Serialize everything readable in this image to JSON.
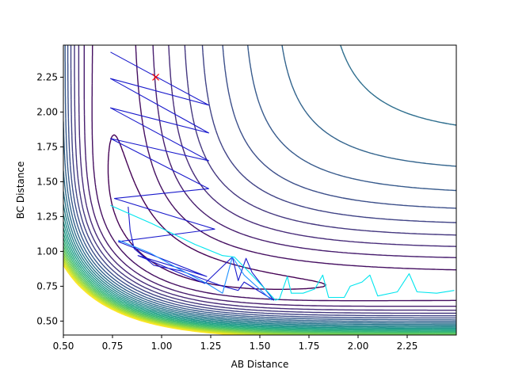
{
  "chart_data": {
    "type": "contour",
    "title": "",
    "xlabel": "AB Distance",
    "ylabel": "BC Distance",
    "xlim": [
      0.5,
      2.5
    ],
    "ylim": [
      0.4,
      2.48
    ],
    "xticks": [
      0.5,
      0.75,
      1.0,
      1.25,
      1.5,
      1.75,
      2.0,
      2.25
    ],
    "xtick_labels": [
      "0.50",
      "0.75",
      "1.00",
      "1.25",
      "1.50",
      "1.75",
      "2.00",
      "2.25"
    ],
    "yticks": [
      0.5,
      0.75,
      1.0,
      1.25,
      1.5,
      1.75,
      2.0,
      2.25
    ],
    "ytick_labels": [
      "0.50",
      "0.75",
      "1.00",
      "1.25",
      "1.50",
      "1.75",
      "2.00",
      "2.25"
    ],
    "grid": false,
    "colormap": "viridis",
    "contour_levels": 26,
    "marker": {
      "shape": "x",
      "color": "#ff0000",
      "x": 0.97,
      "y": 2.25
    },
    "trajectories": [
      {
        "color": "#1a1acc",
        "points": [
          [
            0.74,
            2.43
          ],
          [
            1.24,
            2.05
          ],
          [
            0.74,
            2.24
          ],
          [
            1.24,
            1.85
          ],
          [
            0.74,
            2.03
          ],
          [
            1.24,
            1.65
          ],
          [
            0.74,
            1.81
          ],
          [
            1.24,
            1.45
          ],
          [
            0.76,
            1.38
          ],
          [
            1.27,
            1.16
          ],
          [
            0.78,
            1.07
          ],
          [
            1.23,
            0.82
          ],
          [
            0.88,
            0.97
          ],
          [
            1.22,
            0.77
          ],
          [
            1.36,
            0.96
          ],
          [
            1.39,
            0.79
          ],
          [
            1.43,
            0.95
          ],
          [
            1.46,
            0.85
          ],
          [
            1.57,
            0.65
          ],
          [
            1.42,
            0.78
          ],
          [
            1.39,
            0.72
          ],
          [
            1.31,
            0.75
          ],
          [
            1.1,
            0.86
          ],
          [
            0.96,
            0.9
          ],
          [
            0.86,
            1.02
          ],
          [
            0.84,
            1.15
          ],
          [
            0.83,
            1.32
          ]
        ]
      },
      {
        "color": "#1e90ff",
        "points": [
          [
            0.78,
            1.08
          ],
          [
            0.94,
            0.99
          ],
          [
            1.08,
            0.88
          ],
          [
            1.23,
            0.77
          ],
          [
            1.31,
            0.7
          ],
          [
            1.36,
            0.96
          ],
          [
            1.42,
            0.83
          ],
          [
            1.56,
            0.65
          ]
        ]
      },
      {
        "color": "#00e5ee",
        "points": [
          [
            0.74,
            1.33
          ],
          [
            0.95,
            1.2
          ],
          [
            1.17,
            1.05
          ],
          [
            1.31,
            0.97
          ],
          [
            1.37,
            0.96
          ],
          [
            1.44,
            0.86
          ],
          [
            1.58,
            0.65
          ],
          [
            1.6,
            0.66
          ],
          [
            1.64,
            0.82
          ],
          [
            1.66,
            0.7
          ],
          [
            1.72,
            0.7
          ],
          [
            1.78,
            0.73
          ],
          [
            1.82,
            0.83
          ],
          [
            1.85,
            0.67
          ],
          [
            1.93,
            0.67
          ],
          [
            1.96,
            0.75
          ],
          [
            2.02,
            0.78
          ],
          [
            2.06,
            0.83
          ],
          [
            2.1,
            0.68
          ],
          [
            2.2,
            0.71
          ],
          [
            2.26,
            0.84
          ],
          [
            2.3,
            0.71
          ],
          [
            2.4,
            0.7
          ],
          [
            2.49,
            0.72
          ]
        ]
      }
    ]
  }
}
